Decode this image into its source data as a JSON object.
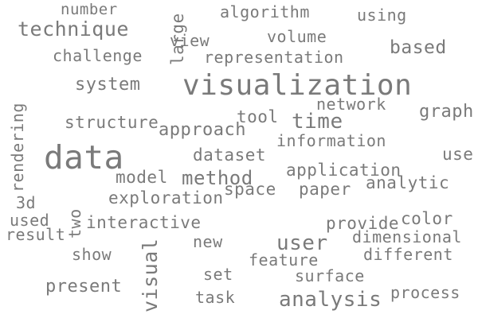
{
  "colors": {
    "text": "#7a7a7a",
    "background": "#ffffff"
  },
  "words": [
    "number",
    "algorithm",
    "using",
    "technique",
    "view",
    "volume",
    "based",
    "challenge",
    "representation",
    "large",
    "system",
    "visualization",
    "network",
    "rendering",
    "tool",
    "time",
    "graph",
    "structure",
    "approach",
    "information",
    "data",
    "dataset",
    "use",
    "model",
    "method",
    "application",
    "space",
    "paper",
    "analytic",
    "3d",
    "exploration",
    "used",
    "two",
    "interactive",
    "provide",
    "color",
    "result",
    "dimensional",
    "visual",
    "new",
    "user",
    "show",
    "feature",
    "different",
    "set",
    "surface",
    "present",
    "task",
    "analysis",
    "process"
  ]
}
